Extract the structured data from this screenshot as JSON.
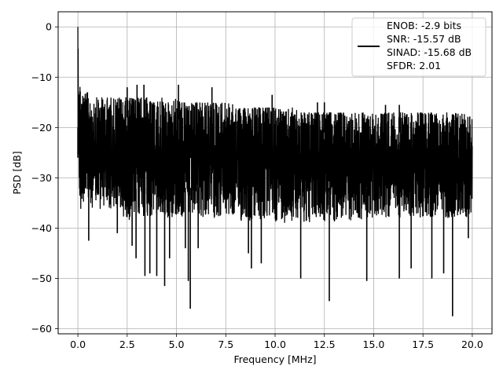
{
  "chart_data": {
    "type": "line",
    "title": "",
    "xlabel": "Frequency [MHz]",
    "ylabel": "PSD [dB]",
    "xlim": [
      -1.0,
      21.0
    ],
    "ylim": [
      -61,
      3
    ],
    "xticks": [
      0.0,
      2.5,
      5.0,
      7.5,
      10.0,
      12.5,
      15.0,
      17.5,
      20.0
    ],
    "xtick_labels": [
      "0.0",
      "2.5",
      "5.0",
      "7.5",
      "10.0",
      "12.5",
      "15.0",
      "17.5",
      "20.0"
    ],
    "yticks": [
      0,
      -10,
      -20,
      -30,
      -40,
      -50,
      -60
    ],
    "ytick_labels": [
      "0",
      "−10",
      "−20",
      "−30",
      "−40",
      "−50",
      "−60"
    ],
    "grid": true,
    "legend_position": "top-right",
    "legend": [
      "ENOB: -2.9 bits",
      "SNR: -15.57 dB",
      "SINAD: -15.68 dB",
      "SFDR: 2.01"
    ],
    "line_color": "#000000",
    "series": [
      {
        "x": [
          0.0,
          0.04,
          0.08,
          0.14,
          0.2,
          0.35,
          0.5,
          0.75,
          1.0,
          1.25,
          1.5,
          1.75,
          2.0,
          2.25,
          2.5,
          2.75,
          3.0,
          3.25,
          3.5,
          3.75,
          4.0,
          4.25,
          4.5,
          4.75,
          5.0,
          5.25,
          5.5,
          5.75,
          6.0,
          6.25,
          6.5,
          6.75,
          7.0,
          7.25,
          7.5,
          7.75,
          8.0,
          8.25,
          8.5,
          8.75,
          9.0,
          9.25,
          9.5,
          9.75,
          10.0,
          10.25,
          10.5,
          10.75,
          11.0,
          11.25,
          11.5,
          11.75,
          12.0,
          12.25,
          12.5,
          12.75,
          13.0,
          13.25,
          13.5,
          13.75,
          14.0,
          14.25,
          14.5,
          14.75,
          15.0,
          15.25,
          15.5,
          15.75,
          16.0,
          16.25,
          16.5,
          16.75,
          17.0,
          17.25,
          17.5,
          17.75,
          18.0,
          18.25,
          18.5,
          18.75,
          19.0,
          19.25,
          19.5,
          19.75,
          20.0
        ],
        "upper": [
          0.0,
          -6,
          -10,
          -12,
          -13,
          -13,
          -13,
          -14,
          -14,
          -14,
          -14,
          -14,
          -14,
          -14,
          -14,
          -14,
          -14,
          -14,
          -14,
          -15,
          -15,
          -14,
          -15,
          -15,
          -14,
          -15,
          -15,
          -15,
          -15,
          -15,
          -15,
          -15,
          -15,
          -15,
          -15,
          -15,
          -16,
          -16,
          -16,
          -16,
          -16,
          -16,
          -16,
          -16,
          -16,
          -16,
          -17,
          -16,
          -16,
          -17,
          -17,
          -17,
          -17,
          -17,
          -17,
          -17,
          -17,
          -17,
          -17,
          -17,
          -17,
          -17,
          -17,
          -17,
          -17,
          -17,
          -17,
          -17,
          -17,
          -17,
          -17,
          -17,
          -17,
          -17,
          -17,
          -17,
          -17,
          -17,
          -17,
          -17,
          -17,
          -17,
          -17,
          -17,
          -18
        ],
        "lower": [
          -26,
          -29,
          -35,
          -38,
          -35,
          -35,
          -36,
          -36,
          -37,
          -36,
          -37,
          -36,
          -38,
          -38,
          -38,
          -39,
          -38,
          -38,
          -38,
          -38,
          -38,
          -38,
          -38,
          -38,
          -38,
          -38,
          -38,
          -38,
          -38,
          -38,
          -38,
          -38,
          -38,
          -38,
          -38,
          -38,
          -38,
          -39,
          -38,
          -39,
          -38,
          -39,
          -39,
          -38,
          -39,
          -38,
          -39,
          -39,
          -38,
          -38,
          -39,
          -39,
          -38,
          -39,
          -39,
          -38,
          -39,
          -38,
          -39,
          -39,
          -38,
          -39,
          -38,
          -38,
          -38,
          -39,
          -38,
          -38,
          -38,
          -38,
          -38,
          -38,
          -38,
          -38,
          -38,
          -38,
          -38,
          -38,
          -38,
          -38,
          -38,
          -38,
          -38,
          -38,
          -37
        ]
      }
    ],
    "spikes": [
      {
        "x": 0.0,
        "y": -26
      },
      {
        "x": 0.55,
        "y": -42.5
      },
      {
        "x": 2.0,
        "y": -41
      },
      {
        "x": 2.75,
        "y": -43.5
      },
      {
        "x": 2.95,
        "y": -46
      },
      {
        "x": 3.4,
        "y": -49.5
      },
      {
        "x": 3.65,
        "y": -49
      },
      {
        "x": 4.0,
        "y": -49.5
      },
      {
        "x": 4.4,
        "y": -51.5
      },
      {
        "x": 4.65,
        "y": -46
      },
      {
        "x": 5.45,
        "y": -44
      },
      {
        "x": 5.6,
        "y": -50.5
      },
      {
        "x": 5.7,
        "y": -56
      },
      {
        "x": 6.1,
        "y": -44
      },
      {
        "x": 8.65,
        "y": -45
      },
      {
        "x": 8.8,
        "y": -48
      },
      {
        "x": 9.3,
        "y": -47
      },
      {
        "x": 11.3,
        "y": -50
      },
      {
        "x": 12.75,
        "y": -54.5
      },
      {
        "x": 14.65,
        "y": -50.5
      },
      {
        "x": 16.3,
        "y": -50
      },
      {
        "x": 16.9,
        "y": -48
      },
      {
        "x": 17.95,
        "y": -50
      },
      {
        "x": 18.55,
        "y": -49
      },
      {
        "x": 19.0,
        "y": -57.5
      },
      {
        "x": 19.8,
        "y": -42
      }
    ],
    "peaks": [
      {
        "x": 2.5,
        "y": -12
      },
      {
        "x": 3.0,
        "y": -11.5
      },
      {
        "x": 3.35,
        "y": -11.5
      },
      {
        "x": 5.1,
        "y": -11.5
      },
      {
        "x": 6.8,
        "y": -12
      },
      {
        "x": 9.85,
        "y": -13.5
      },
      {
        "x": 12.15,
        "y": -15
      },
      {
        "x": 12.5,
        "y": -15
      },
      {
        "x": 15.6,
        "y": -15.5
      },
      {
        "x": 16.3,
        "y": -15.5
      }
    ]
  }
}
